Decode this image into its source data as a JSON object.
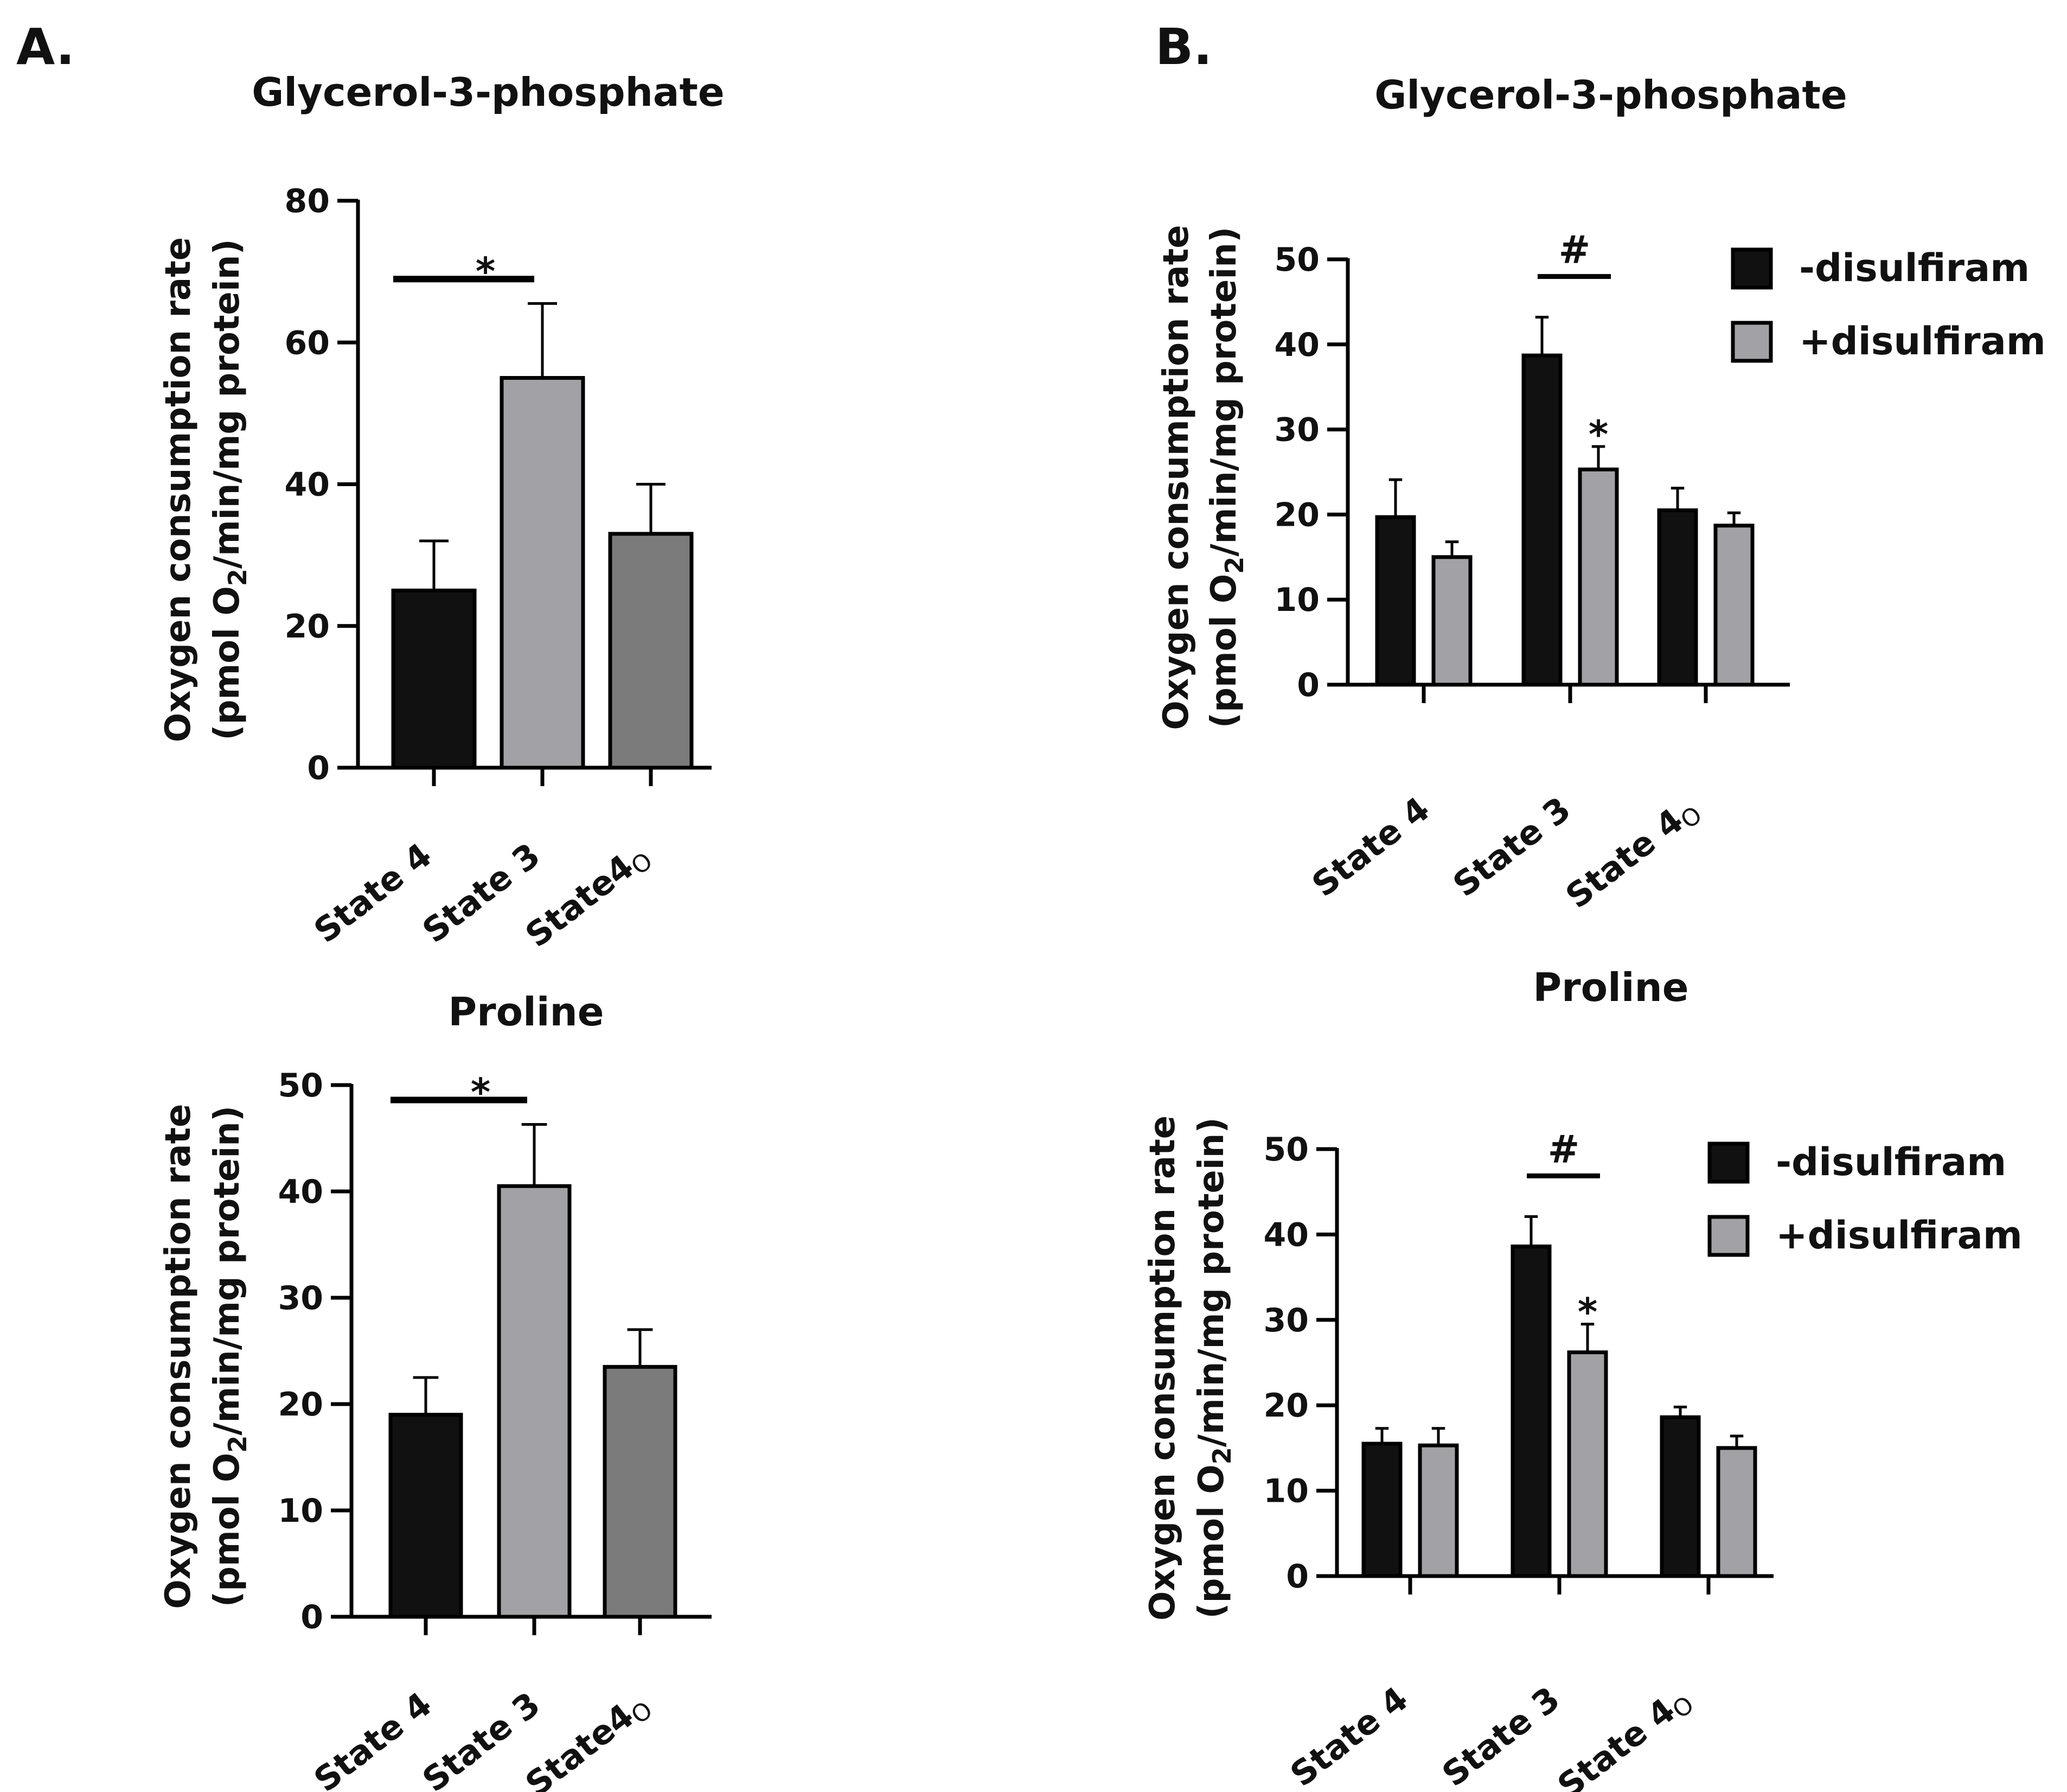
{
  "panels": [
    {
      "label": "A."
    },
    {
      "label": "B."
    }
  ],
  "colors": {
    "black": "#111111",
    "light_gray": "#a2a2a6",
    "dark_gray": "#7b7b7b",
    "stroke": "#000000"
  },
  "chart_data": [
    {
      "id": "A1",
      "panel": "A.",
      "type": "bar",
      "title": "Glycerol-3-phosphate",
      "ylabel_line1": "Oxygen consumption rate",
      "ylabel_line2": "(pmol O2/min/mg protein)",
      "ylabel_prefix": "(pmol O",
      "ylabel_sub": "2",
      "ylabel_suffix": "/min/mg protein)",
      "ylim": [
        0,
        80
      ],
      "yticks": [
        "0",
        "20",
        "40",
        "60",
        "80"
      ],
      "categories": [
        "State 4",
        "State 3",
        "State4"
      ],
      "category_suffix": [
        "",
        "",
        "O"
      ],
      "bar_colors": [
        "#111111",
        "#a2a2a6",
        "#7b7b7b"
      ],
      "values": [
        25,
        55,
        33
      ],
      "errors": [
        7,
        10.5,
        7
      ],
      "significance": [
        {
          "from": 0,
          "to": 1,
          "mark": "*"
        }
      ]
    },
    {
      "id": "A2",
      "panel": "A.",
      "type": "bar",
      "title": "Proline",
      "ylabel_line1": "Oxygen consumption rate",
      "ylabel_line2": "(pmol O2/min/mg protein)",
      "ylabel_prefix": "(pmol O",
      "ylabel_sub": "2",
      "ylabel_suffix": "/min/mg protein)",
      "ylim": [
        0,
        50
      ],
      "yticks": [
        "0",
        "10",
        "20",
        "30",
        "40",
        "50"
      ],
      "categories": [
        "State 4",
        "State 3",
        "State4"
      ],
      "category_suffix": [
        "",
        "",
        "O"
      ],
      "bar_colors": [
        "#111111",
        "#a2a2a6",
        "#7b7b7b"
      ],
      "values": [
        19,
        40.5,
        23.5
      ],
      "errors": [
        3.5,
        5.8,
        3.5
      ],
      "significance": [
        {
          "from": 0,
          "to": 1,
          "mark": "*"
        }
      ]
    },
    {
      "id": "B1",
      "panel": "B.",
      "type": "bar",
      "title": "Glycerol-3-phosphate",
      "ylabel_line1": "Oxygen consumption rate",
      "ylabel_line2": "(pmol O2/min/mg protein)",
      "ylabel_prefix": "(pmol O",
      "ylabel_sub": "2",
      "ylabel_suffix": "/min/mg protein)",
      "ylim": [
        0,
        50
      ],
      "yticks": [
        "0",
        "10",
        "20",
        "30",
        "40",
        "50"
      ],
      "categories": [
        "State 4",
        "State 3",
        "State 4"
      ],
      "category_suffix": [
        "",
        "",
        "O"
      ],
      "series": [
        {
          "name": "-disulfiram",
          "color": "#111111",
          "values": [
            19.7,
            38.7,
            20.5
          ],
          "errors": [
            4.4,
            4.5,
            2.6
          ]
        },
        {
          "name": "+disulfiram",
          "color": "#a2a2a6",
          "values": [
            15,
            25.3,
            18.7
          ],
          "errors": [
            1.8,
            2.7,
            1.5
          ]
        }
      ],
      "annotations": [
        {
          "category": 1,
          "type": "bracket",
          "mark": "#"
        },
        {
          "category": 1,
          "series": 1,
          "mark": "*"
        }
      ],
      "legend_position": "top-right"
    },
    {
      "id": "B2",
      "panel": "B.",
      "type": "bar",
      "title": "Proline",
      "ylabel_line1": "Oxygen consumption rate",
      "ylabel_line2": "(pmol O2/min/mg protein)",
      "ylabel_prefix": "(pmol O",
      "ylabel_sub": "2",
      "ylabel_suffix": "/min/mg protein)",
      "ylim": [
        0,
        50
      ],
      "yticks": [
        "0",
        "10",
        "20",
        "30",
        "40",
        "50"
      ],
      "categories": [
        "State 4",
        "State 3",
        "State 4"
      ],
      "category_suffix": [
        "",
        "",
        "O"
      ],
      "series": [
        {
          "name": "-disulfiram",
          "color": "#111111",
          "values": [
            15.5,
            38.6,
            18.6
          ],
          "errors": [
            1.8,
            3.5,
            1.2
          ]
        },
        {
          "name": "+disulfiram",
          "color": "#a2a2a6",
          "values": [
            15.3,
            26.2,
            15
          ],
          "errors": [
            2,
            3.3,
            1.4
          ]
        }
      ],
      "annotations": [
        {
          "category": 1,
          "type": "bracket",
          "mark": "#"
        },
        {
          "category": 1,
          "series": 1,
          "mark": "*"
        }
      ],
      "legend_position": "top-right"
    }
  ]
}
